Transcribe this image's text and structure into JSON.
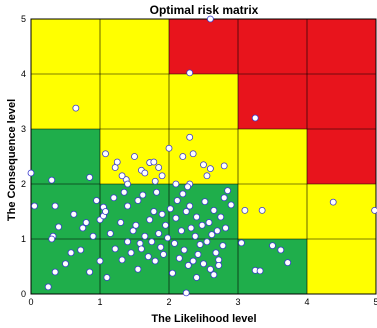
{
  "chart_data": {
    "type": "scatter",
    "title": "Optimal risk matrix",
    "xlabel": "The Likelihood level",
    "ylabel": "The Consequence level",
    "xlim": [
      0,
      5
    ],
    "ylim": [
      0,
      5
    ],
    "x_ticks": [
      "0",
      "1",
      "2",
      "3",
      "4",
      "5"
    ],
    "y_ticks": [
      "0",
      "1",
      "2",
      "3",
      "4",
      "5"
    ],
    "grid": true,
    "colors": {
      "green": "#1fae4b",
      "yellow": "#ffff00",
      "red": "#e8141c",
      "marker_edge": "#3a3acd",
      "marker_fill": "#ffffff"
    },
    "zones": [
      {
        "x": [
          0,
          1
        ],
        "y": [
          0,
          2
        ],
        "color": "green"
      },
      {
        "x": [
          1,
          2
        ],
        "y": [
          0,
          1
        ],
        "color": "green"
      },
      {
        "x": [
          2,
          3
        ],
        "y": [
          0,
          1
        ],
        "color": "green"
      },
      {
        "x": [
          3,
          4
        ],
        "y": [
          0,
          1
        ],
        "color": "green"
      },
      {
        "x": [
          4,
          5
        ],
        "y": [
          0,
          1
        ],
        "color": "yellow"
      },
      {
        "x": [
          1,
          2
        ],
        "y": [
          1,
          2
        ],
        "color": "green"
      },
      {
        "x": [
          2,
          3
        ],
        "y": [
          1,
          2
        ],
        "color": "green"
      },
      {
        "x": [
          3,
          4
        ],
        "y": [
          1,
          2
        ],
        "color": "yellow"
      },
      {
        "x": [
          4,
          5
        ],
        "y": [
          1,
          2
        ],
        "color": "yellow"
      },
      {
        "x": [
          0,
          1
        ],
        "y": [
          2,
          3
        ],
        "color": "green"
      },
      {
        "x": [
          1,
          2
        ],
        "y": [
          2,
          3
        ],
        "color": "yellow"
      },
      {
        "x": [
          2,
          3
        ],
        "y": [
          2,
          3
        ],
        "color": "yellow"
      },
      {
        "x": [
          3,
          4
        ],
        "y": [
          2,
          3
        ],
        "color": "yellow"
      },
      {
        "x": [
          4,
          5
        ],
        "y": [
          2,
          3
        ],
        "color": "red"
      },
      {
        "x": [
          0,
          1
        ],
        "y": [
          3,
          4
        ],
        "color": "yellow"
      },
      {
        "x": [
          1,
          2
        ],
        "y": [
          3,
          4
        ],
        "color": "yellow"
      },
      {
        "x": [
          2,
          3
        ],
        "y": [
          3,
          4
        ],
        "color": "yellow"
      },
      {
        "x": [
          3,
          4
        ],
        "y": [
          3,
          4
        ],
        "color": "red"
      },
      {
        "x": [
          4,
          5
        ],
        "y": [
          3,
          4
        ],
        "color": "red"
      },
      {
        "x": [
          0,
          1
        ],
        "y": [
          4,
          5
        ],
        "color": "yellow"
      },
      {
        "x": [
          1,
          2
        ],
        "y": [
          4,
          5
        ],
        "color": "yellow"
      },
      {
        "x": [
          2,
          3
        ],
        "y": [
          4,
          5
        ],
        "color": "red"
      },
      {
        "x": [
          3,
          4
        ],
        "y": [
          4,
          5
        ],
        "color": "red"
      },
      {
        "x": [
          4,
          5
        ],
        "y": [
          4,
          5
        ],
        "color": "red"
      }
    ],
    "points": [
      [
        2.6,
        5.0
      ],
      [
        2.3,
        4.02
      ],
      [
        0.65,
        3.38
      ],
      [
        3.25,
        3.2
      ],
      [
        0.0,
        2.2
      ],
      [
        0.05,
        1.6
      ],
      [
        0.3,
        2.07
      ],
      [
        0.85,
        2.12
      ],
      [
        1.08,
        2.55
      ],
      [
        1.22,
        2.3
      ],
      [
        1.25,
        2.4
      ],
      [
        1.38,
        2.08
      ],
      [
        1.4,
        2.0
      ],
      [
        1.32,
        2.15
      ],
      [
        1.5,
        2.5
      ],
      [
        1.6,
        2.25
      ],
      [
        1.72,
        2.39
      ],
      [
        1.78,
        2.4
      ],
      [
        1.65,
        2.2
      ],
      [
        1.9,
        2.15
      ],
      [
        1.85,
        2.3
      ],
      [
        1.8,
        2.05
      ],
      [
        2.0,
        2.65
      ],
      [
        2.3,
        2.85
      ],
      [
        2.2,
        2.5
      ],
      [
        2.35,
        2.55
      ],
      [
        2.5,
        2.35
      ],
      [
        2.6,
        2.28
      ],
      [
        2.8,
        2.33
      ],
      [
        2.3,
        2.0
      ],
      [
        2.55,
        2.15
      ],
      [
        2.1,
        2.0
      ],
      [
        2.27,
        1.95
      ],
      [
        2.85,
        1.88
      ],
      [
        3.1,
        1.52
      ],
      [
        3.35,
        1.52
      ],
      [
        4.38,
        1.67
      ],
      [
        4.98,
        1.52
      ],
      [
        3.05,
        0.93
      ],
      [
        3.25,
        0.43
      ],
      [
        3.32,
        0.42
      ],
      [
        3.5,
        0.88
      ],
      [
        3.62,
        0.8
      ],
      [
        3.72,
        0.57
      ],
      [
        0.25,
        0.13
      ],
      [
        0.35,
        0.4
      ],
      [
        0.32,
        1.05
      ],
      [
        0.3,
        1.0
      ],
      [
        0.35,
        1.6
      ],
      [
        0.4,
        1.22
      ],
      [
        0.5,
        0.55
      ],
      [
        0.58,
        0.75
      ],
      [
        0.72,
        0.8
      ],
      [
        0.75,
        1.2
      ],
      [
        0.8,
        1.3
      ],
      [
        0.85,
        0.4
      ],
      [
        0.9,
        1.05
      ],
      [
        0.95,
        1.7
      ],
      [
        1.0,
        0.6
      ],
      [
        1.0,
        1.35
      ],
      [
        1.05,
        1.58
      ],
      [
        1.05,
        1.42
      ],
      [
        1.08,
        1.5
      ],
      [
        1.1,
        0.3
      ],
      [
        1.15,
        1.1
      ],
      [
        1.2,
        1.75
      ],
      [
        1.22,
        0.82
      ],
      [
        1.3,
        1.3
      ],
      [
        1.32,
        0.62
      ],
      [
        1.4,
        1.6
      ],
      [
        1.4,
        0.95
      ],
      [
        1.45,
        0.75
      ],
      [
        1.48,
        1.15
      ],
      [
        1.52,
        1.25
      ],
      [
        1.55,
        0.45
      ],
      [
        1.58,
        0.92
      ],
      [
        1.6,
        0.82
      ],
      [
        1.62,
        1.8
      ],
      [
        1.65,
        1.05
      ],
      [
        1.7,
        0.68
      ],
      [
        1.72,
        1.35
      ],
      [
        1.75,
        0.95
      ],
      [
        1.78,
        1.5
      ],
      [
        1.8,
        0.6
      ],
      [
        1.82,
        1.85
      ],
      [
        1.85,
        1.1
      ],
      [
        1.88,
        0.85
      ],
      [
        1.9,
        1.45
      ],
      [
        1.92,
        0.72
      ],
      [
        1.95,
        1.25
      ],
      [
        1.98,
        1.02
      ],
      [
        2.02,
        1.55
      ],
      [
        2.05,
        0.38
      ],
      [
        2.08,
        0.92
      ],
      [
        2.1,
        1.38
      ],
      [
        2.12,
        1.7
      ],
      [
        2.15,
        0.65
      ],
      [
        2.18,
        1.15
      ],
      [
        2.2,
        1.82
      ],
      [
        2.22,
        0.8
      ],
      [
        2.25,
        1.5
      ],
      [
        2.28,
        0.52
      ],
      [
        2.3,
        1.6
      ],
      [
        2.32,
        1.2
      ],
      [
        2.35,
        0.6
      ],
      [
        2.38,
        1.05
      ],
      [
        2.4,
        1.4
      ],
      [
        2.42,
        0.72
      ],
      [
        2.45,
        0.9
      ],
      [
        2.48,
        1.25
      ],
      [
        2.5,
        0.55
      ],
      [
        2.52,
        1.68
      ],
      [
        2.55,
        0.95
      ],
      [
        2.58,
        1.3
      ],
      [
        2.6,
        0.45
      ],
      [
        2.62,
        1.08
      ],
      [
        2.65,
        1.52
      ],
      [
        2.68,
        0.75
      ],
      [
        2.7,
        1.15
      ],
      [
        2.72,
        0.62
      ],
      [
        2.75,
        1.4
      ],
      [
        2.78,
        0.88
      ],
      [
        2.8,
        1.75
      ],
      [
        2.82,
        1.2
      ],
      [
        2.72,
        0.52
      ],
      [
        2.65,
        0.35
      ],
      [
        2.4,
        0.3
      ],
      [
        2.25,
        0.02
      ],
      [
        2.9,
        1.62
      ],
      [
        1.55,
        1.7
      ],
      [
        1.35,
        1.85
      ],
      [
        0.62,
        1.45
      ]
    ]
  }
}
